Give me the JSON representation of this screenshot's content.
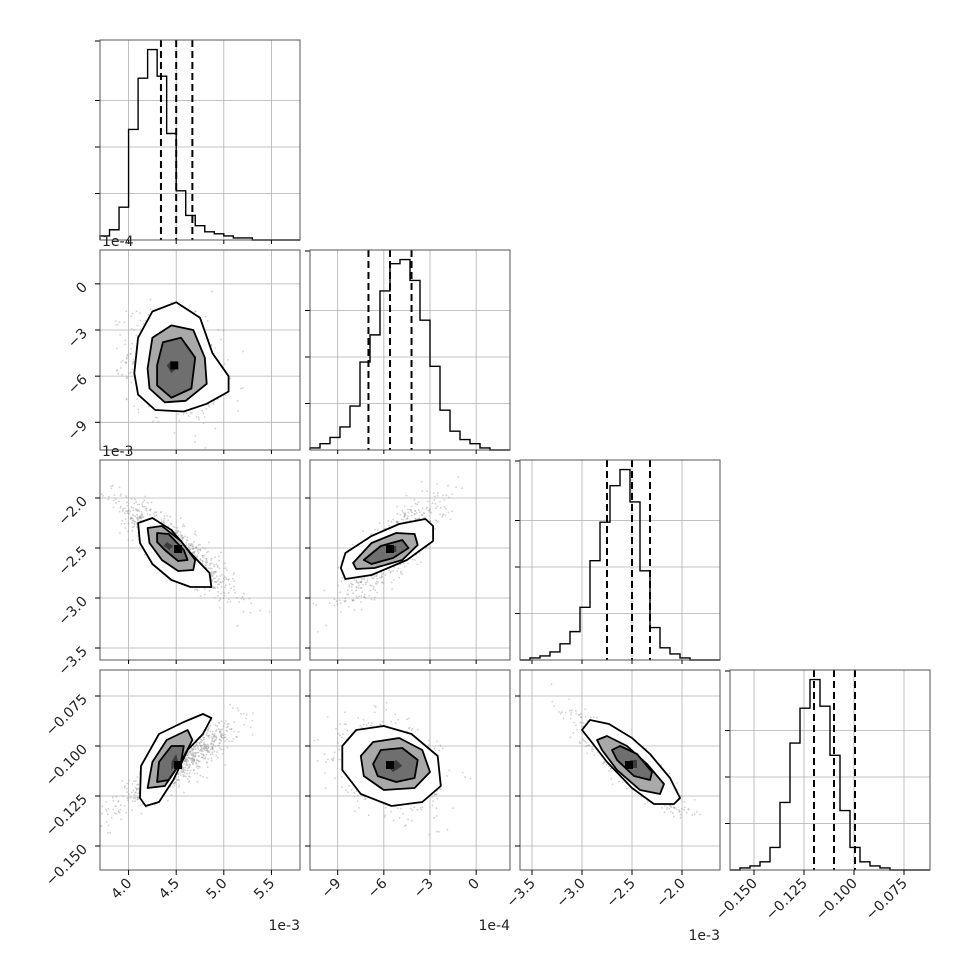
{
  "chart_data": {
    "type": "corner",
    "parameters": [
      {
        "range": [
          0.0037,
          0.0058
        ],
        "ticks": [
          0.004,
          0.0045,
          0.005,
          0.0055
        ],
        "tick_labels": [
          "4.0",
          "4.5",
          "5.0",
          "5.5"
        ],
        "offset_label": "1e−3",
        "offset_text": "1e-3",
        "median": 0.0045,
        "q16": 0.00434,
        "q84": 0.00467,
        "hist": {
          "edges_start": 0.0037,
          "bin_width": 0.0001,
          "counts": [
            2,
            5,
            16,
            54,
            79,
            93,
            80,
            52,
            24,
            12,
            7,
            4,
            3,
            2,
            1,
            1,
            0,
            0,
            0,
            0,
            0
          ]
        }
      },
      {
        "range": [
          -0.00108,
          0.00022
        ],
        "ticks": [
          -0.0009,
          -0.0006,
          -0.0003,
          0.0
        ],
        "tick_labels": [
          "−9",
          "−6",
          "−3",
          "0"
        ],
        "offset_label": "1e−4",
        "offset_text": "1e-4",
        "median": -0.00056,
        "q16": -0.0007,
        "q84": -0.00042,
        "hist": {
          "edges_start": -0.00108,
          "bin_width": 6.5e-05,
          "counts": [
            1,
            3,
            6,
            11,
            21,
            42,
            55,
            76,
            89,
            91,
            81,
            62,
            40,
            19,
            9,
            5,
            3,
            1,
            0,
            0
          ]
        }
      },
      {
        "range": [
          -0.00362,
          -0.00162
        ],
        "ticks": [
          -0.0035,
          -0.003,
          -0.0025,
          -0.002
        ],
        "tick_labels": [
          "−3.5",
          "−3.0",
          "−2.5",
          "−2.0"
        ],
        "offset_label": "1e−3",
        "offset_text": "1e-3",
        "median": -0.0025,
        "q16": -0.00275,
        "q84": -0.00232,
        "hist": {
          "edges_start": -0.00362,
          "bin_width": 0.0001,
          "counts": [
            0,
            1,
            2,
            4,
            8,
            14,
            26,
            49,
            68,
            86,
            94,
            78,
            44,
            16,
            6,
            3,
            1,
            0,
            0,
            0
          ]
        }
      },
      {
        "range": [
          -0.162,
          -0.062
        ],
        "ticks": [
          -0.15,
          -0.125,
          -0.1,
          -0.075
        ],
        "tick_labels": [
          "−0.150",
          "−0.125",
          "−0.100",
          "−0.075"
        ],
        "offset_label": "",
        "offset_text": "",
        "median": -0.11,
        "q16": -0.12,
        "q84": -0.0995,
        "hist": {
          "edges_start": -0.162,
          "bin_width": 0.005,
          "counts": [
            0,
            1,
            2,
            4,
            11,
            33,
            62,
            79,
            93,
            80,
            56,
            29,
            11,
            4,
            2,
            1,
            0,
            0,
            0,
            0
          ]
        }
      }
    ],
    "pairs": [
      {
        "row": 1,
        "col": 0,
        "mean": [
          0.00448,
          -0.00053
        ],
        "sd": [
          0.00024,
          0.000165
        ],
        "rho": -0.25,
        "contours": [
          [
            [
              0.0044,
              -0.00053
            ],
            [
              0.00445,
              -0.0005
            ],
            [
              0.0045,
              -0.00055
            ],
            [
              0.00445,
              -0.00058
            ]
          ],
          [
            [
              0.0043,
              -0.00053
            ],
            [
              0.00436,
              -0.00038
            ],
            [
              0.00455,
              -0.00035
            ],
            [
              0.0047,
              -0.00048
            ],
            [
              0.00466,
              -0.00068
            ],
            [
              0.00445,
              -0.00074
            ],
            [
              0.0043,
              -0.00066
            ]
          ],
          [
            [
              0.0042,
              -0.00055
            ],
            [
              0.00425,
              -0.00035
            ],
            [
              0.00445,
              -0.00027
            ],
            [
              0.00468,
              -0.0003
            ],
            [
              0.0048,
              -0.00048
            ],
            [
              0.00482,
              -0.00065
            ],
            [
              0.0046,
              -0.00076
            ],
            [
              0.00438,
              -0.00077
            ],
            [
              0.00422,
              -0.00068
            ]
          ],
          [
            [
              0.00406,
              -0.00058
            ],
            [
              0.0041,
              -0.00035
            ],
            [
              0.00425,
              -0.00018
            ],
            [
              0.0045,
              -0.00012
            ],
            [
              0.00475,
              -0.00022
            ],
            [
              0.00488,
              -0.00045
            ],
            [
              0.00505,
              -0.0006
            ],
            [
              0.00505,
              -0.0007
            ],
            [
              0.00482,
              -0.00078
            ],
            [
              0.00458,
              -0.00083
            ],
            [
              0.00428,
              -0.00082
            ],
            [
              0.0041,
              -0.00072
            ]
          ]
        ]
      },
      {
        "row": 2,
        "col": 0,
        "mean": [
          0.00452,
          -0.00251
        ],
        "sd": [
          0.0003,
          0.00024
        ],
        "rho": -0.88,
        "contours": [
          [
            [
              0.0044,
              -0.00244
            ],
            [
              0.00447,
              -0.00248
            ],
            [
              0.00443,
              -0.00252
            ],
            [
              0.00437,
              -0.00248
            ]
          ],
          [
            [
              0.0043,
              -0.00235
            ],
            [
              0.00442,
              -0.00236
            ],
            [
              0.00458,
              -0.00252
            ],
            [
              0.00462,
              -0.00262
            ],
            [
              0.00452,
              -0.00263
            ],
            [
              0.00438,
              -0.00252
            ],
            [
              0.0043,
              -0.00244
            ]
          ],
          [
            [
              0.0042,
              -0.0023
            ],
            [
              0.00435,
              -0.00228
            ],
            [
              0.00455,
              -0.00243
            ],
            [
              0.0047,
              -0.00262
            ],
            [
              0.00468,
              -0.00272
            ],
            [
              0.00452,
              -0.00273
            ],
            [
              0.00435,
              -0.00262
            ],
            [
              0.00422,
              -0.00245
            ]
          ],
          [
            [
              0.0041,
              -0.00225
            ],
            [
              0.00425,
              -0.0022
            ],
            [
              0.00445,
              -0.00232
            ],
            [
              0.00465,
              -0.00255
            ],
            [
              0.00485,
              -0.00275
            ],
            [
              0.00487,
              -0.00289
            ],
            [
              0.00465,
              -0.00289
            ],
            [
              0.00445,
              -0.00282
            ],
            [
              0.00425,
              -0.00266
            ],
            [
              0.00412,
              -0.00245
            ]
          ]
        ]
      },
      {
        "row": 2,
        "col": 1,
        "mean": [
          -0.00056,
          -0.00251
        ],
        "sd": [
          0.000155,
          0.00024
        ],
        "rho": 0.8,
        "contours": [
          [
            [
              -0.00058,
              -0.00248
            ],
            [
              -0.00052,
              -0.00248
            ],
            [
              -0.00052,
              -0.00254
            ],
            [
              -0.00058,
              -0.00254
            ]
          ],
          [
            [
              -0.00073,
              -0.00262
            ],
            [
              -0.00062,
              -0.00248
            ],
            [
              -0.00048,
              -0.00242
            ],
            [
              -0.00044,
              -0.0025
            ],
            [
              -0.00054,
              -0.0026
            ],
            [
              -0.00068,
              -0.00266
            ]
          ],
          [
            [
              -0.0008,
              -0.00265
            ],
            [
              -0.00068,
              -0.00245
            ],
            [
              -0.00052,
              -0.00235
            ],
            [
              -0.0004,
              -0.00236
            ],
            [
              -0.00038,
              -0.00247
            ],
            [
              -0.00048,
              -0.00262
            ],
            [
              -0.00066,
              -0.0027
            ],
            [
              -0.00078,
              -0.00271
            ]
          ],
          [
            [
              -0.00088,
              -0.0027
            ],
            [
              -0.00085,
              -0.00255
            ],
            [
              -0.00068,
              -0.00238
            ],
            [
              -0.0005,
              -0.00226
            ],
            [
              -0.00033,
              -0.00221
            ],
            [
              -0.00028,
              -0.00228
            ],
            [
              -0.00028,
              -0.00243
            ],
            [
              -0.00045,
              -0.00262
            ],
            [
              -0.00068,
              -0.00277
            ],
            [
              -0.00085,
              -0.00281
            ]
          ]
        ]
      },
      {
        "row": 3,
        "col": 0,
        "mean": [
          0.00452,
          -0.1095
        ],
        "sd": [
          0.0003,
          0.0105
        ],
        "rho": 0.9,
        "contours": [
          [
            [
              0.00445,
              -0.112
            ],
            [
              0.00452,
              -0.108
            ],
            [
              0.0045,
              -0.104
            ],
            [
              0.00445,
              -0.108
            ]
          ],
          [
            [
              0.0043,
              -0.118
            ],
            [
              0.00432,
              -0.108
            ],
            [
              0.00445,
              -0.1
            ],
            [
              0.00458,
              -0.1
            ],
            [
              0.00455,
              -0.108
            ],
            [
              0.00442,
              -0.117
            ]
          ],
          [
            [
              0.0042,
              -0.121
            ],
            [
              0.00425,
              -0.108
            ],
            [
              0.0044,
              -0.097
            ],
            [
              0.00462,
              -0.092
            ],
            [
              0.00467,
              -0.097
            ],
            [
              0.00455,
              -0.108
            ],
            [
              0.00438,
              -0.12
            ]
          ],
          [
            [
              0.00412,
              -0.126
            ],
            [
              0.00413,
              -0.11
            ],
            [
              0.00432,
              -0.094
            ],
            [
              0.00458,
              -0.088
            ],
            [
              0.00478,
              -0.084
            ],
            [
              0.00487,
              -0.086
            ],
            [
              0.00478,
              -0.094
            ],
            [
              0.00462,
              -0.102
            ],
            [
              0.00447,
              -0.117
            ],
            [
              0.00432,
              -0.128
            ],
            [
              0.00418,
              -0.13
            ]
          ]
        ]
      },
      {
        "row": 3,
        "col": 1,
        "mean": [
          -0.00056,
          -0.1095
        ],
        "sd": [
          0.00016,
          0.0105
        ],
        "rho": -0.3,
        "contours": [
          [
            [
              -0.00058,
              -0.11
            ],
            [
              -0.00052,
              -0.107
            ],
            [
              -0.00048,
              -0.11
            ],
            [
              -0.00054,
              -0.113
            ]
          ],
          [
            [
              -0.00067,
              -0.109
            ],
            [
              -0.00062,
              -0.102
            ],
            [
              -0.00048,
              -0.101
            ],
            [
              -0.00038,
              -0.107
            ],
            [
              -0.0004,
              -0.116
            ],
            [
              -0.00052,
              -0.118
            ],
            [
              -0.00064,
              -0.115
            ]
          ],
          [
            [
              -0.00075,
              -0.105
            ],
            [
              -0.00067,
              -0.098
            ],
            [
              -0.0005,
              -0.096
            ],
            [
              -0.00035,
              -0.102
            ],
            [
              -0.0003,
              -0.113
            ],
            [
              -0.0004,
              -0.121
            ],
            [
              -0.0006,
              -0.122
            ],
            [
              -0.00073,
              -0.115
            ]
          ],
          [
            [
              -0.00087,
              -0.1
            ],
            [
              -0.00078,
              -0.092
            ],
            [
              -0.0006,
              -0.09
            ],
            [
              -0.00042,
              -0.094
            ],
            [
              -0.00025,
              -0.105
            ],
            [
              -0.00023,
              -0.12
            ],
            [
              -0.00035,
              -0.128
            ],
            [
              -0.00055,
              -0.13
            ],
            [
              -0.00075,
              -0.124
            ],
            [
              -0.00087,
              -0.112
            ]
          ]
        ]
      },
      {
        "row": 3,
        "col": 2,
        "mean": [
          -0.00253,
          -0.1095
        ],
        "sd": [
          0.00024,
          0.0105
        ],
        "rho": -0.9,
        "contours": [
          [
            [
              -0.00252,
              -0.107
            ],
            [
              -0.00245,
              -0.107
            ],
            [
              -0.00245,
              -0.111
            ],
            [
              -0.00252,
              -0.111
            ]
          ],
          [
            [
              -0.0027,
              -0.102
            ],
            [
              -0.00262,
              -0.1
            ],
            [
              -0.00245,
              -0.104
            ],
            [
              -0.0023,
              -0.113
            ],
            [
              -0.00232,
              -0.117
            ],
            [
              -0.00248,
              -0.115
            ],
            [
              -0.00265,
              -0.107
            ]
          ],
          [
            [
              -0.00285,
              -0.097
            ],
            [
              -0.00275,
              -0.095
            ],
            [
              -0.00255,
              -0.1
            ],
            [
              -0.00235,
              -0.109
            ],
            [
              -0.00218,
              -0.119
            ],
            [
              -0.00222,
              -0.124
            ],
            [
              -0.00242,
              -0.122
            ],
            [
              -0.00265,
              -0.112
            ],
            [
              -0.0028,
              -0.102
            ]
          ],
          [
            [
              -0.003,
              -0.092
            ],
            [
              -0.00292,
              -0.087
            ],
            [
              -0.00273,
              -0.089
            ],
            [
              -0.0025,
              -0.096
            ],
            [
              -0.00232,
              -0.104
            ],
            [
              -0.00212,
              -0.116
            ],
            [
              -0.00202,
              -0.126
            ],
            [
              -0.00208,
              -0.129
            ],
            [
              -0.00228,
              -0.129
            ],
            [
              -0.0025,
              -0.121
            ],
            [
              -0.00275,
              -0.108
            ],
            [
              -0.00292,
              -0.097
            ]
          ]
        ]
      }
    ],
    "contour_fill_colors": [
      "#3b3b3b",
      "#6f6f6f",
      "#a9a9a9"
    ],
    "grid": true
  }
}
